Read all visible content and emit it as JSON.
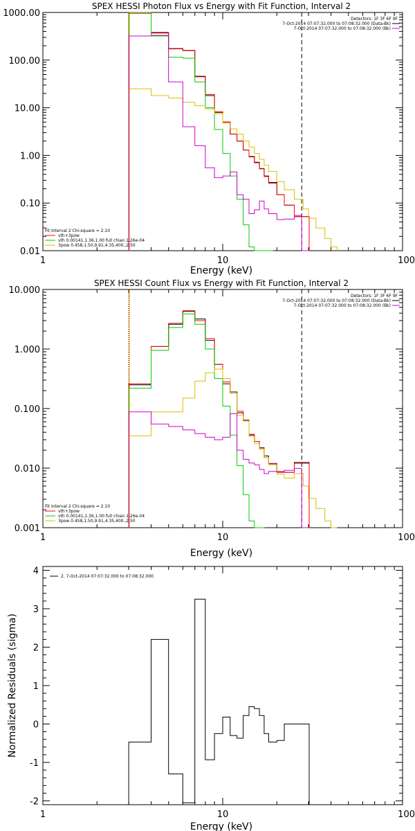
{
  "chart_data": [
    {
      "type": "line",
      "title": "SPEX HESSI Photon Flux vs Energy with Fit Function, Interval 2",
      "xlabel": "Energy (keV)",
      "ylabel": "",
      "xscale": "log",
      "yscale": "log",
      "xlim": [
        1,
        100
      ],
      "ylim": [
        0.01,
        1000
      ],
      "xticks": [
        "1",
        "10",
        "100"
      ],
      "yticks": [
        "0.01",
        "0.10",
        "1.00",
        "10.00",
        "100.00",
        "1000.00"
      ],
      "legend_header": {
        "detectors": "Detectors: 1F 3F 6F 9F",
        "lines": [
          {
            "text": "7-Oct-2014 07:07:32.000 to 07:08:32.000 (Data-Bk)",
            "color": "#000000"
          },
          {
            "text": "7-Oct-2014 07:07:32.000 to 07:08:32.000 (Bk)",
            "color": "#cc00cc"
          }
        ]
      },
      "fit_legend": {
        "header": "Fit Interval 2  Chi-square = 2.10",
        "items": [
          {
            "text": "vth+3pow",
            "color": "#ff0000"
          },
          {
            "text": "vth 0.00141,1.36,1.00  full chian 1.26e-04",
            "color": "#00cc00"
          },
          {
            "text": "3pow 0.458,1.50,9.91,4.35,400.,2.50",
            "color": "#ddbb00"
          }
        ]
      },
      "grid": false,
      "vlines": [
        {
          "x": 3.0,
          "style": "dotted",
          "color": "#000000"
        },
        {
          "x": 3.0,
          "style": "solid",
          "color": "#ff9900"
        },
        {
          "x": 27.5,
          "style": "dashed",
          "color": "#000000"
        }
      ],
      "series": [
        {
          "color": "#000000",
          "x": [
            3,
            4,
            5,
            6,
            7,
            8,
            9,
            10,
            11,
            12,
            13,
            14,
            15,
            16,
            17,
            18,
            20,
            22,
            25,
            27.5
          ],
          "values": [
            1000,
            380,
            175,
            160,
            45,
            18,
            8.0,
            5.0,
            2.8,
            2.0,
            1.3,
            0.95,
            0.72,
            0.53,
            0.37,
            0.27,
            0.15,
            0.09,
            0.052,
            0.052
          ]
        },
        {
          "color": "#ff0000",
          "x": [
            3,
            4,
            5,
            6,
            7,
            8,
            9,
            10,
            11,
            12,
            13,
            14,
            15,
            16,
            17,
            18,
            20,
            22,
            25,
            27.5
          ],
          "values": [
            1000,
            370,
            172,
            158,
            46,
            19,
            8.2,
            5.0,
            2.8,
            2.0,
            1.3,
            0.93,
            0.7,
            0.52,
            0.36,
            0.26,
            0.15,
            0.09,
            0.052,
            0.052
          ]
        },
        {
          "color": "#00cc00",
          "x": [
            3,
            4,
            5,
            6,
            7,
            8,
            9,
            10,
            11,
            12,
            13,
            14,
            15,
            16,
            17,
            18
          ],
          "values": [
            950,
            320,
            115,
            110,
            35,
            10,
            3.5,
            1.1,
            0.37,
            0.12,
            0.035,
            0.012,
            0.01,
            0.01,
            0.01,
            0.01
          ]
        },
        {
          "color": "#ddbb00",
          "x": [
            3,
            4,
            5,
            6,
            7,
            8,
            9,
            10,
            11,
            12,
            13,
            14,
            15,
            16,
            17,
            18,
            20,
            22,
            25,
            28,
            30,
            33,
            37,
            40
          ],
          "values": [
            25,
            18,
            16,
            13,
            11,
            9.5,
            7.5,
            4.8,
            3.6,
            2.8,
            2.0,
            1.5,
            1.1,
            0.83,
            0.62,
            0.46,
            0.28,
            0.19,
            0.12,
            0.075,
            0.048,
            0.03,
            0.018,
            0.012
          ]
        },
        {
          "color": "#cc00cc",
          "x": [
            3,
            4,
            5,
            6,
            7,
            8,
            9,
            10,
            11,
            12,
            13,
            14,
            15,
            16,
            17,
            18,
            20,
            22,
            25,
            27.5
          ],
          "values": [
            320,
            330,
            35,
            4.0,
            1.6,
            0.55,
            0.34,
            0.37,
            0.45,
            0.15,
            0.12,
            0.06,
            0.072,
            0.11,
            0.075,
            0.06,
            0.045,
            0.046,
            0.055,
            0.01
          ]
        }
      ]
    },
    {
      "type": "line",
      "title": "SPEX HESSI Count Flux vs Energy with Fit Function, Interval 2",
      "xlabel": "Energy (keV)",
      "ylabel": "",
      "xscale": "log",
      "yscale": "log",
      "xlim": [
        1,
        100
      ],
      "ylim": [
        0.001,
        10
      ],
      "xticks": [
        "1",
        "10",
        "100"
      ],
      "yticks": [
        "0.001",
        "0.010",
        "0.100",
        "1.000",
        "10.000"
      ],
      "legend_header": {
        "detectors": "Detectors: 1F 3F 6F 9F",
        "lines": [
          {
            "text": "7-Oct-2014 07:07:32.000 to 07:08:32.000 (Data-Bk)",
            "color": "#000000"
          },
          {
            "text": "7-Oct-2014 07:07:32.000 to 07:08:32.000 (Bk)",
            "color": "#cc00cc"
          }
        ]
      },
      "fit_legend": {
        "header": "Fit Interval 2  Chi-square = 2.10",
        "items": [
          {
            "text": "vth+3pow",
            "color": "#ff0000"
          },
          {
            "text": "vth 0.00141,1.36,1.00  full chian 1.26e-04",
            "color": "#00cc00"
          },
          {
            "text": "3pow 0.458,1.50,9.91,4.35,400.,2.50",
            "color": "#ddbb00"
          }
        ]
      },
      "grid": false,
      "vlines": [
        {
          "x": 3.0,
          "style": "dotted",
          "color": "#000000"
        },
        {
          "x": 3.0,
          "style": "solid",
          "color": "#ff9900"
        },
        {
          "x": 27.5,
          "style": "dashed",
          "color": "#000000"
        }
      ],
      "series": [
        {
          "color": "#000000",
          "x": [
            3,
            4,
            5,
            6,
            7,
            8,
            9,
            10,
            11,
            12,
            13,
            14,
            15,
            16,
            17,
            18,
            20,
            22,
            25,
            27.5
          ],
          "values": [
            0.25,
            1.1,
            2.6,
            4.3,
            3.2,
            1.4,
            0.55,
            0.26,
            0.19,
            0.085,
            0.064,
            0.036,
            0.028,
            0.022,
            0.016,
            0.0118,
            0.0085,
            0.0085,
            0.0125,
            0.0125
          ]
        },
        {
          "color": "#ff0000",
          "x": [
            3,
            4,
            5,
            6,
            7,
            8,
            9,
            10,
            11,
            12,
            13,
            14,
            15,
            16,
            17,
            18,
            20,
            22,
            25,
            27.5
          ],
          "values": [
            0.26,
            1.1,
            2.7,
            4.4,
            3.0,
            1.5,
            0.55,
            0.28,
            0.18,
            0.09,
            0.062,
            0.037,
            0.028,
            0.021,
            0.015,
            0.012,
            0.0085,
            0.0085,
            0.012,
            0.012
          ]
        },
        {
          "color": "#00cc00",
          "x": [
            3,
            4,
            5,
            6,
            7,
            8,
            9,
            10,
            11,
            12,
            13,
            14,
            15,
            16
          ],
          "values": [
            0.22,
            0.95,
            2.3,
            3.9,
            2.6,
            1.0,
            0.32,
            0.11,
            0.036,
            0.011,
            0.0036,
            0.0013,
            0.001,
            0.001
          ]
        },
        {
          "color": "#ddbb00",
          "x": [
            3,
            4,
            5,
            6,
            7,
            8,
            9,
            10,
            11,
            12,
            13,
            14,
            15,
            16,
            17,
            18,
            20,
            22,
            25,
            28,
            30,
            33,
            37,
            40
          ],
          "values": [
            0.035,
            0.088,
            0.088,
            0.15,
            0.29,
            0.4,
            0.46,
            0.32,
            0.18,
            0.077,
            0.062,
            0.034,
            0.026,
            0.021,
            0.015,
            0.0114,
            0.0079,
            0.0068,
            0.0081,
            0.005,
            0.0031,
            0.0021,
            0.0013,
            0.001
          ]
        },
        {
          "color": "#cc00cc",
          "x": [
            3,
            4,
            5,
            6,
            7,
            8,
            9,
            10,
            11,
            12,
            13,
            14,
            15,
            16,
            17,
            18,
            20,
            22,
            25,
            27.5
          ],
          "values": [
            0.088,
            0.055,
            0.05,
            0.044,
            0.038,
            0.033,
            0.03,
            0.033,
            0.082,
            0.02,
            0.014,
            0.0122,
            0.0114,
            0.0095,
            0.0081,
            0.0088,
            0.0088,
            0.0092,
            0.0099,
            0.001
          ]
        }
      ]
    },
    {
      "type": "line",
      "title": "",
      "xlabel": "Energy (keV)",
      "ylabel": "Normalized Residuals (sigma)",
      "xscale": "log",
      "yscale": "linear",
      "xlim": [
        1,
        100
      ],
      "ylim": [
        -2.1,
        4.1
      ],
      "xticks": [
        "1",
        "10",
        "100"
      ],
      "yticks": [
        "-2",
        "-1",
        "0",
        "1",
        "2",
        "3",
        "4"
      ],
      "legend": [
        {
          "text": "2.  7-Oct-2014 07:07:32.000 to 07:08:32.000",
          "color": "#000000"
        }
      ],
      "grid": false,
      "series": [
        {
          "color": "#000000",
          "x": [
            3,
            4,
            5,
            6,
            7,
            8,
            9,
            10,
            11,
            12,
            13,
            14,
            15,
            16,
            17,
            18,
            20,
            22,
            25,
            27.5
          ],
          "values": [
            -0.47,
            2.2,
            -1.3,
            -2.05,
            3.25,
            -0.93,
            -0.25,
            0.18,
            -0.3,
            -0.37,
            0.22,
            0.45,
            0.4,
            0.22,
            -0.25,
            -0.47,
            -0.43,
            0,
            0,
            0
          ]
        }
      ]
    }
  ]
}
